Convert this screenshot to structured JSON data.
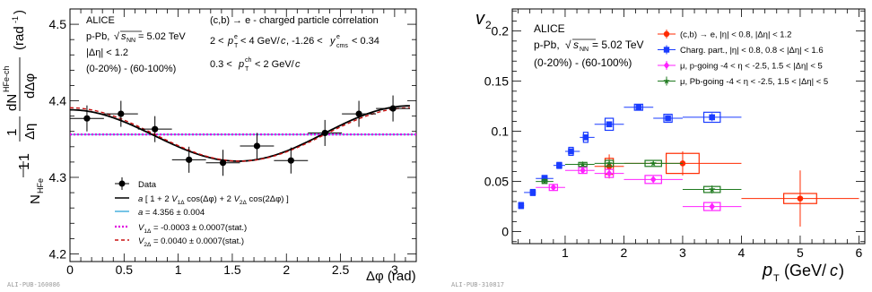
{
  "left_panel": {
    "watermark": "ALI-PUB-160086",
    "annotations_left": [
      "ALICE",
      "p-Pb, √s_NN = 5.02 TeV",
      "|Δη| < 1.2",
      "(0-20%) - (60-100%)"
    ],
    "annotations_right": [
      "(c,b) → e - charged particle correlation",
      "2 < p_T^e < 4 GeV/c, -1.26 < y_cms^e < 0.34",
      "0.3 < p_T^ch < 2 GeV/c"
    ],
    "legend": [
      {
        "label": "Data",
        "color": "#000000"
      },
      {
        "label": "a [ 1 + 2 V_1Δ cos(Δφ) + 2 V_2Δ cos(2Δφ) ]",
        "color": "#000000"
      },
      {
        "label": "a = 4.356 ± 0.004",
        "color": "#2ca5d8"
      },
      {
        "label": "V_1Δ = -0.0003 ± 0.0007(stat.)",
        "color": "#e000e0"
      },
      {
        "label": "V_2Δ = 0.0040 ± 0.0007(stat.)",
        "color": "#c81010"
      }
    ]
  },
  "right_panel": {
    "watermark": "ALI-PUB-310817",
    "annotations": [
      "ALICE",
      "p-Pb, √s_NN = 5.02 TeV",
      "(0-20%) - (60-100%)"
    ]
  },
  "chart_data": [
    {
      "type": "scatter",
      "xlabel": "Δφ (rad)",
      "ylabel": "(1/N_HFe) dN^HFe-ch/dΔη dΔφ (rad^-1)",
      "xlim": [
        0,
        3.2
      ],
      "ylim": [
        4.19,
        4.52
      ],
      "xticks": [
        0,
        0.5,
        1,
        1.5,
        2,
        2.5,
        3
      ],
      "yticks": [
        4.2,
        4.3,
        4.4,
        4.5
      ],
      "series": [
        {
          "name": "Data",
          "x": [
            0.157,
            0.471,
            0.785,
            1.1,
            1.414,
            1.728,
            2.042,
            2.356,
            2.67,
            2.985
          ],
          "y": [
            4.377,
            4.383,
            4.363,
            4.323,
            4.319,
            4.341,
            4.322,
            4.358,
            4.383,
            4.39
          ],
          "yerr": [
            0.017,
            0.017,
            0.017,
            0.017,
            0.017,
            0.017,
            0.017,
            0.017,
            0.017,
            0.017
          ],
          "xerr": 0.157
        }
      ],
      "fit": {
        "a": 4.356,
        "V1": -0.0003,
        "V2": 0.004
      },
      "legend_position": "bottom-center"
    },
    {
      "type": "scatter",
      "xlabel": "p_T (GeV/c)",
      "ylabel": "v_2",
      "xlim": [
        0.1,
        6.1
      ],
      "ylim": [
        -0.012,
        0.222
      ],
      "xticks": [
        1,
        2,
        3,
        4,
        5,
        6
      ],
      "yticks": [
        0,
        0.05,
        0.1,
        0.15,
        0.2
      ],
      "series": [
        {
          "name": "(c,b) → e, |η| < 0.8, |Δη| < 1.2",
          "color": "#ff2a00",
          "marker": "circle",
          "x": [
            1.75,
            3.0,
            5.0
          ],
          "y": [
            0.065,
            0.068,
            0.033
          ],
          "xlo": [
            1.5,
            2.0,
            4.0
          ],
          "xhi": [
            2.0,
            4.0,
            6.0
          ],
          "yerr": [
            0.012,
            0.012,
            0.028
          ],
          "syst": [
            0.008,
            0.01,
            0.005
          ]
        },
        {
          "name": "Charg. part., |η| < 0.8, 0.8 < |Δη| < 1.6",
          "color": "#1a3cff",
          "marker": "square",
          "x": [
            0.25,
            0.45,
            0.65,
            0.9,
            1.1,
            1.35,
            1.75,
            2.25,
            2.75,
            3.5
          ],
          "y": [
            0.026,
            0.039,
            0.053,
            0.066,
            0.08,
            0.094,
            0.107,
            0.124,
            0.113,
            0.114
          ],
          "xlo": [
            0.2,
            0.3,
            0.5,
            0.8,
            1.0,
            1.25,
            1.5,
            2.0,
            2.5,
            3.0
          ],
          "xhi": [
            0.3,
            0.5,
            0.8,
            1.0,
            1.25,
            1.5,
            2.0,
            2.5,
            3.0,
            4.0
          ],
          "yerr": [
            0.001,
            0.001,
            0.001,
            0.001,
            0.001,
            0.002,
            0.002,
            0.002,
            0.003,
            0.004
          ],
          "syst": [
            0.003,
            0.003,
            0.003,
            0.003,
            0.004,
            0.005,
            0.006,
            0.003,
            0.004,
            0.005
          ]
        },
        {
          "name": "μ, p-going -4 < η < -2.5, 1.5 < |Δη| < 5",
          "color": "#ff22ff",
          "marker": "diamond",
          "x": [
            0.8,
            1.3,
            1.75,
            2.5,
            3.5
          ],
          "y": [
            0.044,
            0.061,
            0.058,
            0.052,
            0.025
          ],
          "xlo": [
            0.5,
            1.0,
            1.5,
            2.0,
            3.0
          ],
          "xhi": [
            1.0,
            1.5,
            2.0,
            3.0,
            4.0
          ],
          "yerr": [
            0.001,
            0.002,
            0.002,
            0.003,
            0.004
          ],
          "syst": [
            0.003,
            0.003,
            0.004,
            0.004,
            0.004
          ]
        },
        {
          "name": "μ, Pb-going -4 < η < -2.5, 1.5 < |Δη| < 5",
          "color": "#1f7a1f",
          "marker": "star",
          "x": [
            0.65,
            1.3,
            1.75,
            2.5,
            3.5
          ],
          "y": [
            0.05,
            0.067,
            0.068,
            0.068,
            0.042
          ],
          "xlo": [
            0.5,
            1.0,
            1.5,
            2.0,
            3.0
          ],
          "xhi": [
            0.8,
            1.5,
            2.0,
            3.0,
            4.0
          ],
          "yerr": [
            0.001,
            0.001,
            0.002,
            0.002,
            0.004
          ],
          "syst": [
            0.002,
            0.002,
            0.003,
            0.003,
            0.003
          ]
        }
      ],
      "legend_position": "top-right"
    }
  ]
}
